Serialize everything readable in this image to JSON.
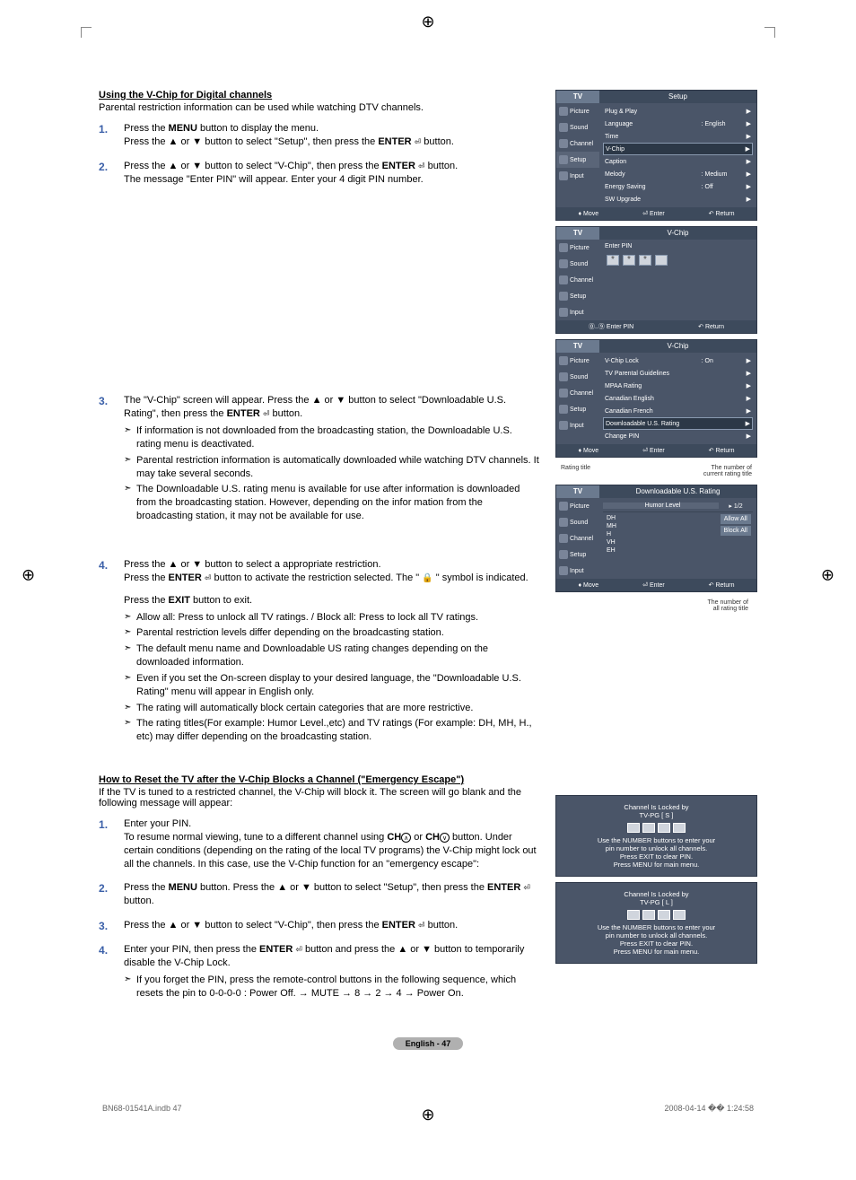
{
  "registration_glyph": "⊕",
  "section1": {
    "title": "Using the V-Chip for Digital channels",
    "intro": "Parental restriction information can be used while watching DTV channels.",
    "step1_a": "Press the ",
    "step1_menu": "MENU",
    "step1_b": " button to display the menu.",
    "step1_c": "Press the ▲ or ▼ button to select \"Setup\", then press the ",
    "step1_enter": "ENTER",
    "step1_d": " button.",
    "step2_a": "Press the ▲ or ▼ button to select \"V-Chip\", then press the ",
    "step2_enter": "ENTER",
    "step2_b": " button.",
    "step2_c": "The message \"Enter PIN\" will appear. Enter your 4 digit PIN number.",
    "step3_a": "The \"V-Chip\" screen will appear. Press the ▲ or ▼ button to select \"Downloadable U.S. Rating\", then press the ",
    "step3_enter": "ENTER",
    "step3_b": " button.",
    "step3_n1": "If information is not downloaded from the broadcasting station, the Downloadable U.S. rating menu is deactivated.",
    "step3_n2": "Parental restriction information is automatically downloaded while watching DTV channels. It may take several seconds.",
    "step3_n3": "The Downloadable U.S. rating menu is available for use after information is downloaded from the broadcasting station. However, depending on the infor mation from the broadcasting station, it may not be available for use.",
    "step4_a": "Press the ▲ or ▼ button to select a appropriate restriction.",
    "step4_b": "Press the ",
    "step4_enter": "ENTER",
    "step4_c": " button to activate the restriction selected. The \" ",
    "step4_d": " \" symbol is indicated.",
    "step4_exit_a": "Press the ",
    "step4_exit": "EXIT",
    "step4_exit_b": " button to exit.",
    "step4_n1": "Allow all: Press to unlock all TV ratings. / Block all: Press to lock all TV ratings.",
    "step4_n2": "Parental restriction levels differ depending on the broadcasting station.",
    "step4_n3": "The default menu name and Downloadable US rating changes depending on the downloaded information.",
    "step4_n4": "Even if you set the On-screen display to your desired language, the \"Downloadable U.S. Rating\" menu will appear in English only.",
    "step4_n5": "The rating will automatically block certain categories that are more restrictive.",
    "step4_n6": "The rating titles(For example: Humor Level.,etc) and TV ratings (For example: DH, MH, H., etc) may differ depending on the broadcasting station."
  },
  "section2": {
    "title": "How to Reset the TV after the V-Chip Blocks a Channel (\"Emergency Escape\")",
    "intro": "If the TV is tuned to a restricted channel, the V-Chip will block it. The screen will go blank and the following message will appear:",
    "step1_a": "Enter your PIN.",
    "step1_b": "To resume normal viewing, tune to a different channel using ",
    "step1_ch": "CH",
    "step1_c": " or ",
    "step1_d": " button. Under certain conditions (depending on the rating of the local TV programs) the V-Chip might lock out all the channels. In this case, use the V-Chip function for an \"emergency escape\":",
    "step2_a": "Press the ",
    "step2_menu": "MENU",
    "step2_b": " button. Press the ▲ or ▼ button to select \"Setup\", then press the ",
    "step2_enter": "ENTER",
    "step2_c": " button.",
    "step3_a": "Press the ▲ or ▼ button to select \"V-Chip\", then press the ",
    "step3_enter": "ENTER",
    "step3_b": " button.",
    "step4_a": "Enter your PIN, then press the ",
    "step4_enter": "ENTER",
    "step4_b": " button and press the ▲ or ▼ button to temporarily disable the V-Chip Lock.",
    "step4_n1": "If you forget the PIN, press the remote-control buttons in the following sequence, which resets the pin to 0-0-0-0 : Power Off. → MUTE → 8 → 2 → 4 → Power On."
  },
  "osd_common": {
    "tv": "TV",
    "picture": "Picture",
    "sound": "Sound",
    "channel": "Channel",
    "setup": "Setup",
    "input": "Input",
    "move": "Move",
    "enter": "Enter",
    "return": "Return",
    "enter_pin": "Enter PIN"
  },
  "osd1": {
    "title": "Setup",
    "items": [
      {
        "label": "Plug & Play",
        "value": ""
      },
      {
        "label": "Language",
        "value": ": English"
      },
      {
        "label": "Time",
        "value": ""
      },
      {
        "label": "V-Chip",
        "value": ""
      },
      {
        "label": "Caption",
        "value": ""
      },
      {
        "label": "Melody",
        "value": ": Medium"
      },
      {
        "label": "Energy Saving",
        "value": ": Off"
      },
      {
        "label": "SW Upgrade",
        "value": ""
      }
    ],
    "highlight_index": 3
  },
  "osd2": {
    "title": "V-Chip"
  },
  "osd3": {
    "title": "V-Chip",
    "items": [
      {
        "label": "V-Chip Lock",
        "value": ": On"
      },
      {
        "label": "TV Parental Guidelines",
        "value": ""
      },
      {
        "label": "MPAA Rating",
        "value": ""
      },
      {
        "label": "Canadian English",
        "value": ""
      },
      {
        "label": "Canadian French",
        "value": ""
      },
      {
        "label": "Downloadable U.S. Rating",
        "value": ""
      },
      {
        "label": "Change PIN",
        "value": ""
      }
    ],
    "highlight_index": 5
  },
  "osd4": {
    "title": "Downloadable U.S. Rating",
    "annot_left": "Rating title",
    "annot_right_1": "The number of",
    "annot_right_2": "current rating title",
    "humor": "Humor Level",
    "page": "1/2",
    "levels": [
      "DH",
      "MH",
      "H",
      "VH",
      "EH"
    ],
    "allow": "Allow All",
    "block": "Block All",
    "bottom_annot_1": "The number of",
    "bottom_annot_2": "all rating title"
  },
  "lock1": {
    "line1": "Channel Is Locked by",
    "line2": "TV-PG [ S ]",
    "line3": "Use the NUMBER buttons to enter your",
    "line4": "pin number to unlock all channels.",
    "line5": "Press EXIT to clear PIN.",
    "line6": "Press MENU for main menu."
  },
  "lock2": {
    "line1": "Channel Is Locked by",
    "line2": "TV-PG [ L ]",
    "line3": "Use the NUMBER buttons to enter your",
    "line4": "pin number to unlock all channels.",
    "line5": "Press EXIT to clear PIN.",
    "line6": "Press MENU for main menu."
  },
  "page_badge": "English - 47",
  "footer_left": "BN68-01541A.indb   47",
  "footer_right": "2008-04-14   �� 1:24:58",
  "colors": {
    "osd_bg": "#4a5568",
    "osd_header": "#3d4a5c",
    "osd_tab": "#6b7a8f",
    "accent_blue": "#3a5fa8",
    "badge_bg": "#b0b0b0"
  }
}
